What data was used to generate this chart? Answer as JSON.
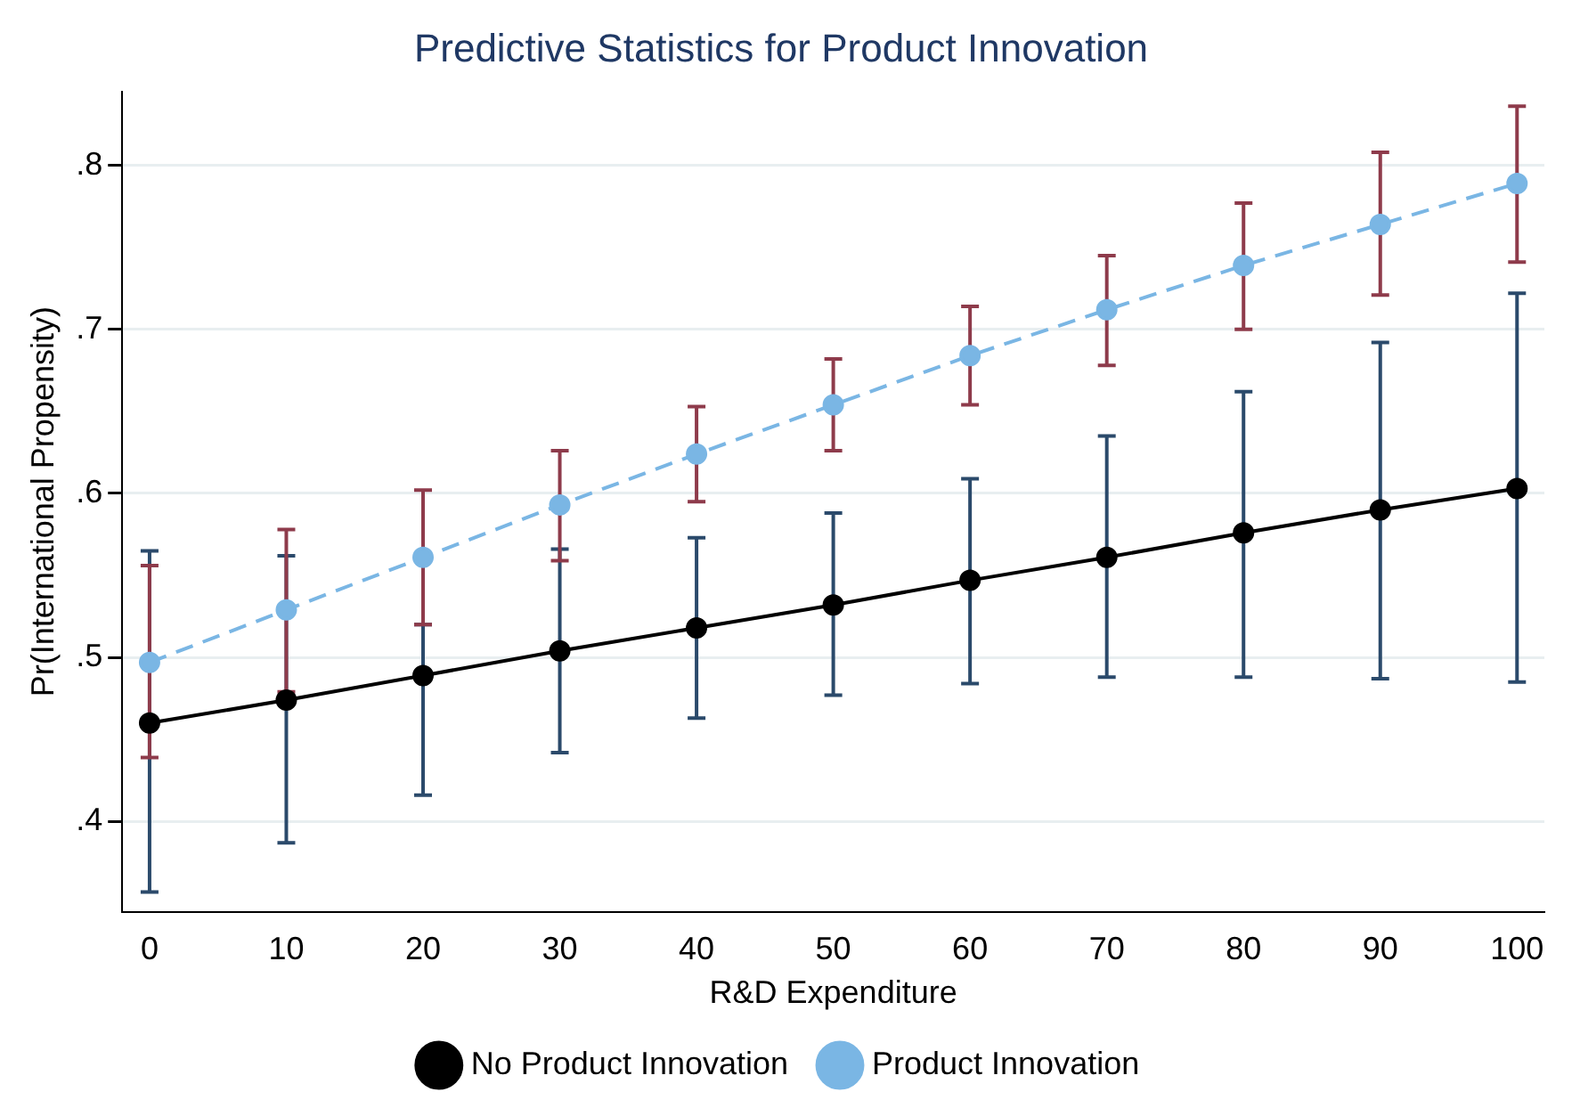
{
  "chart_data": {
    "type": "line",
    "title": "Predictive Statistics for Product Innovation",
    "xlabel": "R&D Expenditure",
    "ylabel": "Pr(International Propensity)",
    "x": [
      0,
      10,
      20,
      30,
      40,
      50,
      60,
      70,
      80,
      90,
      100
    ],
    "series": [
      {
        "name": "No Product Innovation",
        "color": "#000000",
        "values": [
          0.46,
          0.474,
          0.489,
          0.504,
          0.518,
          0.532,
          0.547,
          0.561,
          0.576,
          0.59,
          0.603
        ],
        "errors": [
          [
            0.357,
            0.565
          ],
          [
            0.387,
            0.562
          ],
          [
            0.416,
            0.52
          ],
          [
            0.442,
            0.566
          ],
          [
            0.463,
            0.573
          ],
          [
            0.477,
            0.588
          ],
          [
            0.484,
            0.609
          ],
          [
            0.488,
            0.635
          ],
          [
            0.488,
            0.662
          ],
          [
            0.487,
            0.692
          ],
          [
            0.485,
            0.722
          ]
        ],
        "line_style": "solid"
      },
      {
        "name": "Product Innovation",
        "color": "#7ab6e4",
        "values": [
          0.497,
          0.529,
          0.561,
          0.593,
          0.624,
          0.654,
          0.684,
          0.712,
          0.739,
          0.764,
          0.789
        ],
        "errors": [
          [
            0.439,
            0.556
          ],
          [
            0.479,
            0.578
          ],
          [
            0.52,
            0.602
          ],
          [
            0.559,
            0.626
          ],
          [
            0.595,
            0.653
          ],
          [
            0.626,
            0.682
          ],
          [
            0.654,
            0.714
          ],
          [
            0.678,
            0.745
          ],
          [
            0.7,
            0.777
          ],
          [
            0.721,
            0.808
          ],
          [
            0.741,
            0.836
          ]
        ],
        "line_style": "dashed"
      }
    ],
    "xlim": [
      -2,
      102
    ],
    "xticks": [
      0,
      10,
      20,
      30,
      40,
      50,
      60,
      70,
      80,
      90,
      100
    ],
    "ylim": [
      0.345,
      0.845
    ],
    "yticks": [
      {
        "value": 0.4,
        "label": ".4"
      },
      {
        "value": 0.5,
        "label": ".5"
      },
      {
        "value": 0.6,
        "label": ".6"
      },
      {
        "value": 0.7,
        "label": ".7"
      },
      {
        "value": 0.8,
        "label": ".8"
      }
    ],
    "grid": "y",
    "legend": "bottom",
    "marker": "circle"
  }
}
